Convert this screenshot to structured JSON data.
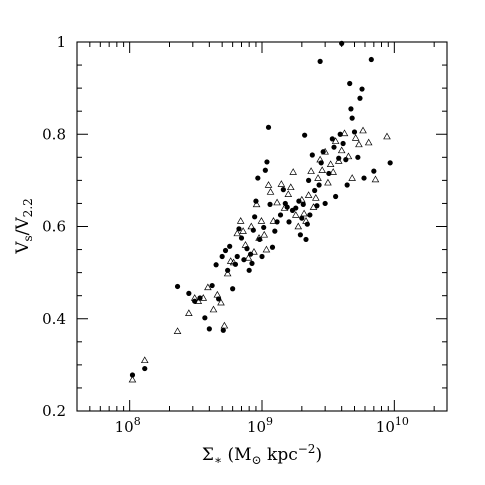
{
  "chart_data": {
    "type": "scatter",
    "x_scale": "log",
    "xlim": [
      40000000,
      25000000000
    ],
    "ylim": [
      0.2,
      1.0
    ],
    "xlabel": "Σ* (M⊙ kpc⁻²)",
    "ylabel": "Vs/V2.2",
    "x_ticks": [
      {
        "value": 100000000,
        "base": "10",
        "exp": "8"
      },
      {
        "value": 1000000000,
        "base": "10",
        "exp": "9"
      },
      {
        "value": 10000000000,
        "base": "10",
        "exp": "10"
      }
    ],
    "y_ticks": [
      0.2,
      0.4,
      0.6,
      0.8,
      1.0
    ],
    "y_tick_labels": [
      "0.2",
      "0.4",
      "0.6",
      "0.8",
      "1"
    ],
    "grid": false,
    "legend": "none",
    "series": [
      {
        "marker": "filled-circle",
        "points": [
          [
            105000000.0,
            0.278
          ],
          [
            130000000.0,
            0.292
          ],
          [
            230000000.0,
            0.47
          ],
          [
            280000000.0,
            0.455
          ],
          [
            310000000.0,
            0.438
          ],
          [
            340000000.0,
            0.445
          ],
          [
            370000000.0,
            0.402
          ],
          [
            400000000.0,
            0.378
          ],
          [
            420000000.0,
            0.472
          ],
          [
            450000000.0,
            0.517
          ],
          [
            470000000.0,
            0.443
          ],
          [
            500000000.0,
            0.535
          ],
          [
            510000000.0,
            0.375
          ],
          [
            530000000.0,
            0.548
          ],
          [
            550000000.0,
            0.505
          ],
          [
            570000000.0,
            0.557
          ],
          [
            600000000.0,
            0.465
          ],
          [
            630000000.0,
            0.518
          ],
          [
            650000000.0,
            0.535
          ],
          [
            670000000.0,
            0.595
          ],
          [
            700000000.0,
            0.575
          ],
          [
            730000000.0,
            0.528
          ],
          [
            770000000.0,
            0.552
          ],
          [
            800000000.0,
            0.505
          ],
          [
            820000000.0,
            0.54
          ],
          [
            840000000.0,
            0.52
          ],
          [
            860000000.0,
            0.592
          ],
          [
            880000000.0,
            0.621
          ],
          [
            900000000.0,
            0.655
          ],
          [
            930000000.0,
            0.705
          ],
          [
            960000000.0,
            0.572
          ],
          [
            1000000000.0,
            0.535
          ],
          [
            1030000000.0,
            0.598
          ],
          [
            1060000000.0,
            0.722
          ],
          [
            1090000000.0,
            0.74
          ],
          [
            1120000000.0,
            0.815
          ],
          [
            1150000000.0,
            0.648
          ],
          [
            1200000000.0,
            0.555
          ],
          [
            1250000000.0,
            0.59
          ],
          [
            1300000000.0,
            0.61
          ],
          [
            1380000000.0,
            0.625
          ],
          [
            1450000000.0,
            0.68
          ],
          [
            1500000000.0,
            0.65
          ],
          [
            1550000000.0,
            0.642
          ],
          [
            1600000000.0,
            0.61
          ],
          [
            1700000000.0,
            0.635
          ],
          [
            1800000000.0,
            0.64
          ],
          [
            1900000000.0,
            0.655
          ],
          [
            1950000000.0,
            0.582
          ],
          [
            2000000000.0,
            0.618
          ],
          [
            2050000000.0,
            0.648
          ],
          [
            2100000000.0,
            0.798
          ],
          [
            2150000000.0,
            0.572
          ],
          [
            2200000000.0,
            0.605
          ],
          [
            2250000000.0,
            0.7
          ],
          [
            2300000000.0,
            0.625
          ],
          [
            2400000000.0,
            0.755
          ],
          [
            2500000000.0,
            0.678
          ],
          [
            2600000000.0,
            0.645
          ],
          [
            2700000000.0,
            0.69
          ],
          [
            2750000000.0,
            0.958
          ],
          [
            2800000000.0,
            0.738
          ],
          [
            2900000000.0,
            0.762
          ],
          [
            3000000000.0,
            0.65
          ],
          [
            3200000000.0,
            0.715
          ],
          [
            3400000000.0,
            0.79
          ],
          [
            3500000000.0,
            0.772
          ],
          [
            3600000000.0,
            0.665
          ],
          [
            3800000000.0,
            0.748
          ],
          [
            3900000000.0,
            0.8
          ],
          [
            4000000000.0,
            0.997
          ],
          [
            4100000000.0,
            0.78
          ],
          [
            4300000000.0,
            0.745
          ],
          [
            4400000000.0,
            0.69
          ],
          [
            4600000000.0,
            0.91
          ],
          [
            4700000000.0,
            0.855
          ],
          [
            4800000000.0,
            0.835
          ],
          [
            5000000000.0,
            0.805
          ],
          [
            5300000000.0,
            0.75
          ],
          [
            5500000000.0,
            0.878
          ],
          [
            5700000000.0,
            0.898
          ],
          [
            5900000000.0,
            0.705
          ],
          [
            6700000000.0,
            0.962
          ],
          [
            7000000000.0,
            0.72
          ],
          [
            9300000000.0,
            0.738
          ]
        ]
      },
      {
        "marker": "open-triangle",
        "points": [
          [
            105000000.0,
            0.268
          ],
          [
            130000000.0,
            0.31
          ],
          [
            230000000.0,
            0.373
          ],
          [
            280000000.0,
            0.412
          ],
          [
            310000000.0,
            0.445
          ],
          [
            330000000.0,
            0.438
          ],
          [
            360000000.0,
            0.445
          ],
          [
            390000000.0,
            0.468
          ],
          [
            430000000.0,
            0.42
          ],
          [
            460000000.0,
            0.452
          ],
          [
            490000000.0,
            0.435
          ],
          [
            520000000.0,
            0.385
          ],
          [
            550000000.0,
            0.498
          ],
          [
            580000000.0,
            0.525
          ],
          [
            610000000.0,
            0.522
          ],
          [
            650000000.0,
            0.585
          ],
          [
            690000000.0,
            0.612
          ],
          [
            720000000.0,
            0.59
          ],
          [
            750000000.0,
            0.56
          ],
          [
            790000000.0,
            0.532
          ],
          [
            830000000.0,
            0.6
          ],
          [
            870000000.0,
            0.545
          ],
          [
            910000000.0,
            0.648
          ],
          [
            950000000.0,
            0.575
          ],
          [
            990000000.0,
            0.612
          ],
          [
            1040000000.0,
            0.582
          ],
          [
            1080000000.0,
            0.55
          ],
          [
            1120000000.0,
            0.69
          ],
          [
            1160000000.0,
            0.675
          ],
          [
            1220000000.0,
            0.612
          ],
          [
            1300000000.0,
            0.652
          ],
          [
            1400000000.0,
            0.692
          ],
          [
            1480000000.0,
            0.64
          ],
          [
            1580000000.0,
            0.67
          ],
          [
            1650000000.0,
            0.685
          ],
          [
            1720000000.0,
            0.718
          ],
          [
            1800000000.0,
            0.625
          ],
          [
            1880000000.0,
            0.6
          ],
          [
            2000000000.0,
            0.658
          ],
          [
            2080000000.0,
            0.628
          ],
          [
            2150000000.0,
            0.612
          ],
          [
            2250000000.0,
            0.668
          ],
          [
            2350000000.0,
            0.72
          ],
          [
            2450000000.0,
            0.642
          ],
          [
            2550000000.0,
            0.662
          ],
          [
            2650000000.0,
            0.705
          ],
          [
            2750000000.0,
            0.745
          ],
          [
            2850000000.0,
            0.722
          ],
          [
            3000000000.0,
            0.762
          ],
          [
            3150000000.0,
            0.695
          ],
          [
            3300000000.0,
            0.735
          ],
          [
            3450000000.0,
            0.718
          ],
          [
            3600000000.0,
            0.785
          ],
          [
            3800000000.0,
            0.742
          ],
          [
            4000000000.0,
            0.765
          ],
          [
            4200000000.0,
            0.802
          ],
          [
            4500000000.0,
            0.752
          ],
          [
            4800000000.0,
            0.705
          ],
          [
            5100000000.0,
            0.792
          ],
          [
            5400000000.0,
            0.778
          ],
          [
            5800000000.0,
            0.808
          ],
          [
            6400000000.0,
            0.782
          ],
          [
            7200000000.0,
            0.702
          ],
          [
            8800000000.0,
            0.795
          ]
        ]
      }
    ]
  }
}
